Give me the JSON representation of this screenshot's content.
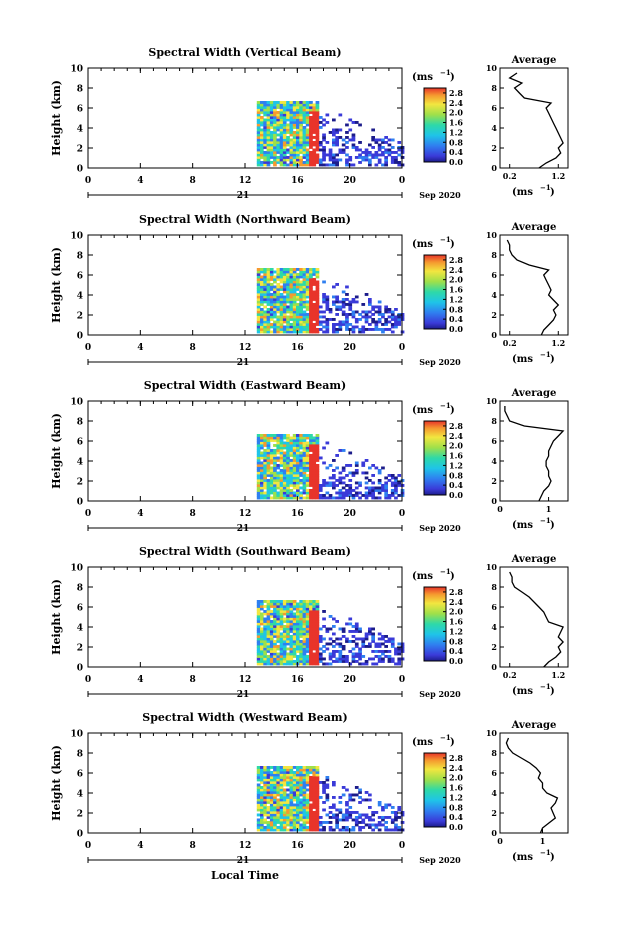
{
  "figure": {
    "xlabel": "Local Time",
    "date_label": "Sep 2020",
    "day_label": "21",
    "height_label": "Height (km)",
    "unit_label": "(ms",
    "unit_sup": "−1",
    "unit_close": ")",
    "avg_xlabel": "(ms",
    "avg_sup": "−1",
    "avg_close": ")",
    "avg_title": "Average"
  },
  "chart_data": [
    {
      "type": "heatmap",
      "title": "Spectral Width (Vertical Beam)",
      "x_ticks": [
        "0",
        "4",
        "8",
        "12",
        "16",
        "20",
        "0"
      ],
      "xlim": [
        0,
        24
      ],
      "y_ticks": [
        "0",
        "2",
        "4",
        "6",
        "8",
        "10"
      ],
      "ylim": [
        0,
        10
      ],
      "colorbar_ticks": [
        "0.0",
        "0.4",
        "0.8",
        "1.2",
        "1.6",
        "2.0",
        "2.4",
        "2.8"
      ],
      "colorbar_range": [
        0,
        3.0
      ],
      "avg_x_ticks": [
        "0.2",
        "1.2"
      ],
      "avg_xlim": [
        0,
        1.4
      ],
      "avg_profile": {
        "heights": [
          0,
          0.5,
          1,
          1.5,
          2,
          2.5,
          3,
          3.5,
          4,
          4.5,
          5,
          5.5,
          6,
          6.5,
          7,
          7.5,
          8,
          8.5,
          9,
          9.5
        ],
        "values": [
          0.8,
          0.95,
          1.15,
          1.25,
          1.2,
          1.3,
          1.25,
          1.2,
          1.15,
          1.1,
          1.05,
          1.0,
          0.95,
          1.05,
          0.5,
          0.4,
          0.3,
          0.45,
          0.2,
          0.35
        ]
      }
    },
    {
      "type": "heatmap",
      "title": "Spectral Width (Northward Beam)",
      "x_ticks": [
        "0",
        "4",
        "8",
        "12",
        "16",
        "20",
        "0"
      ],
      "xlim": [
        0,
        24
      ],
      "y_ticks": [
        "0",
        "2",
        "4",
        "6",
        "8",
        "10"
      ],
      "ylim": [
        0,
        10
      ],
      "colorbar_ticks": [
        "0.0",
        "0.4",
        "0.8",
        "1.2",
        "1.6",
        "2.0",
        "2.4",
        "2.8"
      ],
      "colorbar_range": [
        0,
        3.0
      ],
      "avg_x_ticks": [
        "0.2",
        "1.2"
      ],
      "avg_xlim": [
        0,
        1.4
      ],
      "avg_profile": {
        "heights": [
          0,
          0.5,
          1,
          1.5,
          2,
          2.5,
          3,
          3.5,
          4,
          4.5,
          5,
          5.5,
          6,
          6.5,
          7,
          7.5,
          8,
          8.5,
          9,
          9.5
        ],
        "values": [
          0.85,
          0.9,
          1.0,
          1.1,
          1.15,
          1.1,
          1.2,
          1.1,
          1.0,
          1.05,
          1.0,
          0.95,
          0.9,
          1.0,
          0.6,
          0.35,
          0.25,
          0.2,
          0.2,
          0.15
        ]
      }
    },
    {
      "type": "heatmap",
      "title": "Spectral Width (Eastward Beam)",
      "x_ticks": [
        "0",
        "4",
        "8",
        "12",
        "16",
        "20",
        "0"
      ],
      "xlim": [
        0,
        24
      ],
      "y_ticks": [
        "0",
        "2",
        "4",
        "6",
        "8",
        "10"
      ],
      "ylim": [
        0,
        10
      ],
      "colorbar_ticks": [
        "0.0",
        "0.4",
        "0.8",
        "1.2",
        "1.6",
        "2.0",
        "2.4",
        "2.8"
      ],
      "colorbar_range": [
        0,
        3.0
      ],
      "avg_x_ticks": [
        "0",
        "1"
      ],
      "avg_xlim": [
        0,
        1.4
      ],
      "avg_profile": {
        "heights": [
          0,
          0.5,
          1,
          1.5,
          2,
          2.5,
          3,
          3.5,
          4,
          4.5,
          5,
          5.5,
          6,
          6.5,
          7,
          7.5,
          8,
          8.5,
          9,
          9.5
        ],
        "values": [
          0.8,
          0.85,
          0.9,
          1.0,
          1.05,
          1.0,
          1.0,
          0.95,
          0.95,
          1.0,
          1.0,
          1.05,
          1.1,
          1.2,
          1.3,
          0.5,
          0.2,
          0.15,
          0.1,
          0.1
        ]
      }
    },
    {
      "type": "heatmap",
      "title": "Spectral Width (Southward Beam)",
      "x_ticks": [
        "0",
        "4",
        "8",
        "12",
        "16",
        "20",
        "0"
      ],
      "xlim": [
        0,
        24
      ],
      "y_ticks": [
        "0",
        "2",
        "4",
        "6",
        "8",
        "10"
      ],
      "ylim": [
        0,
        10
      ],
      "colorbar_ticks": [
        "0.0",
        "0.4",
        "0.8",
        "1.2",
        "1.6",
        "2.0",
        "2.4",
        "2.8"
      ],
      "colorbar_range": [
        0,
        3.0
      ],
      "avg_x_ticks": [
        "0.2",
        "1.2"
      ],
      "avg_xlim": [
        0,
        1.4
      ],
      "avg_profile": {
        "heights": [
          0,
          0.5,
          1,
          1.5,
          2,
          2.5,
          3,
          3.5,
          4,
          4.5,
          5,
          5.5,
          6,
          6.5,
          7,
          7.5,
          8,
          8.5,
          9,
          9.5
        ],
        "values": [
          0.9,
          1.0,
          1.15,
          1.25,
          1.2,
          1.3,
          1.2,
          1.25,
          1.3,
          1.0,
          0.95,
          0.9,
          0.8,
          0.7,
          0.6,
          0.45,
          0.3,
          0.25,
          0.25,
          0.2
        ]
      }
    },
    {
      "type": "heatmap",
      "title": "Spectral Width (Westward Beam)",
      "x_ticks": [
        "0",
        "4",
        "8",
        "12",
        "16",
        "20",
        "0"
      ],
      "xlim": [
        0,
        24
      ],
      "y_ticks": [
        "0",
        "2",
        "4",
        "6",
        "8",
        "10"
      ],
      "ylim": [
        0,
        10
      ],
      "colorbar_ticks": [
        "0.0",
        "0.4",
        "0.8",
        "1.2",
        "1.6",
        "2.0",
        "2.4",
        "2.8"
      ],
      "colorbar_range": [
        0,
        3.0
      ],
      "avg_x_ticks": [
        "0",
        "1"
      ],
      "avg_xlim": [
        0,
        1.6
      ],
      "avg_profile": {
        "heights": [
          0,
          0.5,
          1,
          1.5,
          2,
          2.5,
          3,
          3.5,
          4,
          4.5,
          5,
          5.5,
          6,
          6.5,
          7,
          7.5,
          8,
          8.5,
          9,
          9.5
        ],
        "values": [
          0.95,
          1.0,
          1.15,
          1.3,
          1.25,
          1.2,
          1.3,
          1.35,
          1.1,
          1.0,
          1.0,
          0.9,
          0.95,
          0.85,
          0.7,
          0.5,
          0.3,
          0.2,
          0.15,
          0.2
        ]
      }
    }
  ]
}
